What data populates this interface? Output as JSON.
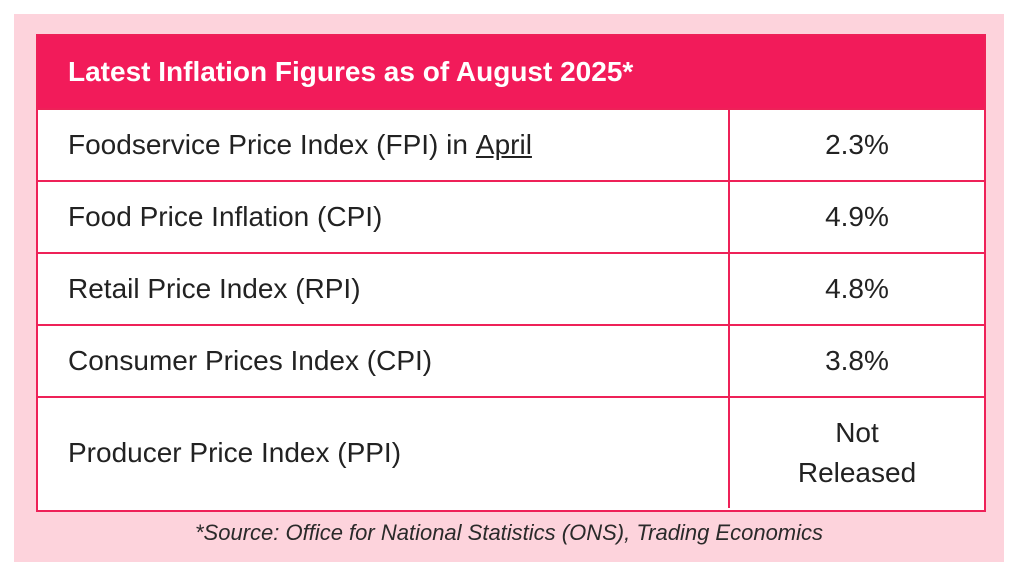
{
  "header": {
    "title": "Latest Inflation Figures as of August 2025*"
  },
  "rows": [
    {
      "label": "Foodservice Price Index (FPI) in",
      "link": "April",
      "value": "2.3%"
    },
    {
      "label": "Food Price Inflation (CPI)",
      "value": "4.9%"
    },
    {
      "label": "Retail Price Index (RPI)",
      "value": "4.8%"
    },
    {
      "label": "Consumer Prices Index (CPI)",
      "value": "3.8%"
    },
    {
      "label": "Producer Price Index (PPI)",
      "value": "Not Released"
    }
  ],
  "footer": {
    "source": "*Source: Office for National Statistics (ONS), Trading Economics"
  },
  "colors": {
    "accent": "#f21b5a",
    "background": "#fdd3dc"
  }
}
